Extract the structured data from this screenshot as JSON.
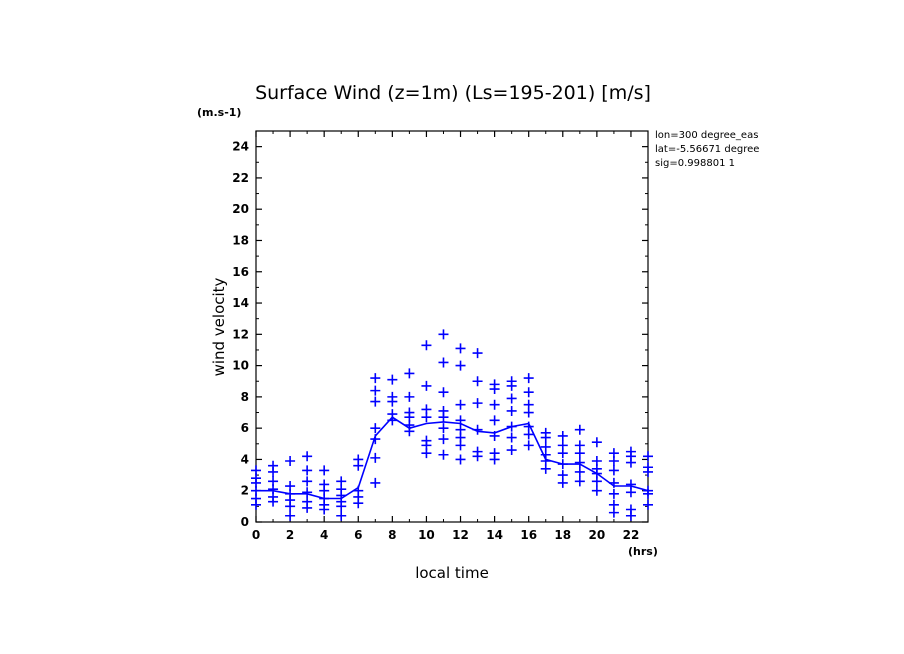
{
  "chart_data": {
    "type": "scatter",
    "title": "Surface Wind (z=1m) (Ls=195-201) [m/s]",
    "y_unit": "(m.s-1)",
    "x_unit": "(hrs)",
    "xlabel": "local time",
    "ylabel": "wind velocity",
    "xlim": [
      0,
      23
    ],
    "ylim": [
      0,
      25
    ],
    "xticks": [
      0,
      2,
      4,
      6,
      8,
      10,
      12,
      14,
      16,
      18,
      20,
      22
    ],
    "yticks": [
      0,
      2,
      4,
      6,
      8,
      10,
      12,
      14,
      16,
      18,
      20,
      22,
      24
    ],
    "info": [
      "lon=300 degree_eas",
      "lat=-5.56671 degree",
      "sig=0.998801 1"
    ],
    "color": "#0000ff",
    "mean_line": {
      "x": [
        0,
        1,
        2,
        3,
        4,
        5,
        6,
        7,
        8,
        9,
        10,
        11,
        12,
        13,
        14,
        15,
        16,
        17,
        18,
        19,
        20,
        21,
        22,
        23
      ],
      "y": [
        2.0,
        2.0,
        1.8,
        1.8,
        1.5,
        1.5,
        2.2,
        5.5,
        6.7,
        6.0,
        6.3,
        6.4,
        6.3,
        5.8,
        5.7,
        6.1,
        6.3,
        4.0,
        3.7,
        3.7,
        3.1,
        2.3,
        2.3,
        2.0
      ]
    },
    "points": [
      [
        0,
        1.1
      ],
      [
        0,
        1.5
      ],
      [
        0,
        2.0
      ],
      [
        0,
        2.5
      ],
      [
        0,
        2.8
      ],
      [
        0,
        3.3
      ],
      [
        1,
        1.3
      ],
      [
        1,
        1.6
      ],
      [
        1,
        2.1
      ],
      [
        1,
        2.6
      ],
      [
        1,
        3.2
      ],
      [
        1,
        3.6
      ],
      [
        2,
        0.4
      ],
      [
        2,
        1.0
      ],
      [
        2,
        1.4
      ],
      [
        2,
        1.8
      ],
      [
        2,
        2.3
      ],
      [
        2,
        3.9
      ],
      [
        3,
        0.9
      ],
      [
        3,
        1.3
      ],
      [
        3,
        1.9
      ],
      [
        3,
        2.6
      ],
      [
        3,
        3.3
      ],
      [
        3,
        4.2
      ],
      [
        4,
        0.8
      ],
      [
        4,
        1.1
      ],
      [
        4,
        1.5
      ],
      [
        4,
        2.0
      ],
      [
        4,
        2.4
      ],
      [
        4,
        3.3
      ],
      [
        5,
        0.4
      ],
      [
        5,
        1.0
      ],
      [
        5,
        1.3
      ],
      [
        5,
        1.7
      ],
      [
        5,
        2.1
      ],
      [
        5,
        2.6
      ],
      [
        6,
        1.2
      ],
      [
        6,
        1.6
      ],
      [
        6,
        2.0
      ],
      [
        6,
        3.6
      ],
      [
        6,
        4.0
      ],
      [
        7,
        2.5
      ],
      [
        7,
        4.1
      ],
      [
        7,
        5.3
      ],
      [
        7,
        6.0
      ],
      [
        7,
        7.7
      ],
      [
        7,
        8.4
      ],
      [
        7,
        9.2
      ],
      [
        8,
        6.5
      ],
      [
        8,
        6.9
      ],
      [
        8,
        7.7
      ],
      [
        8,
        8.0
      ],
      [
        8,
        9.1
      ],
      [
        9,
        5.8
      ],
      [
        9,
        6.2
      ],
      [
        9,
        6.7
      ],
      [
        9,
        7.0
      ],
      [
        9,
        8.0
      ],
      [
        9,
        9.5
      ],
      [
        10,
        4.4
      ],
      [
        10,
        4.9
      ],
      [
        10,
        5.2
      ],
      [
        10,
        6.7
      ],
      [
        10,
        7.2
      ],
      [
        10,
        8.7
      ],
      [
        10,
        11.3
      ],
      [
        11,
        4.3
      ],
      [
        11,
        5.3
      ],
      [
        11,
        6.0
      ],
      [
        11,
        6.7
      ],
      [
        11,
        7.1
      ],
      [
        11,
        8.3
      ],
      [
        11,
        10.2
      ],
      [
        11,
        12.0
      ],
      [
        12,
        4.0
      ],
      [
        12,
        4.9
      ],
      [
        12,
        5.4
      ],
      [
        12,
        5.9
      ],
      [
        12,
        6.5
      ],
      [
        12,
        7.5
      ],
      [
        12,
        10.0
      ],
      [
        12,
        11.1
      ],
      [
        13,
        4.2
      ],
      [
        13,
        4.5
      ],
      [
        13,
        5.9
      ],
      [
        13,
        7.6
      ],
      [
        13,
        9.0
      ],
      [
        13,
        10.8
      ],
      [
        14,
        4.0
      ],
      [
        14,
        4.4
      ],
      [
        14,
        5.5
      ],
      [
        14,
        6.5
      ],
      [
        14,
        7.5
      ],
      [
        14,
        8.5
      ],
      [
        14,
        8.8
      ],
      [
        15,
        4.6
      ],
      [
        15,
        5.4
      ],
      [
        15,
        6.1
      ],
      [
        15,
        7.1
      ],
      [
        15,
        7.9
      ],
      [
        15,
        8.7
      ],
      [
        15,
        9.0
      ],
      [
        16,
        4.9
      ],
      [
        16,
        5.6
      ],
      [
        16,
        6.1
      ],
      [
        16,
        7.0
      ],
      [
        16,
        7.5
      ],
      [
        16,
        8.3
      ],
      [
        16,
        9.2
      ],
      [
        17,
        3.4
      ],
      [
        17,
        3.9
      ],
      [
        17,
        4.3
      ],
      [
        17,
        4.8
      ],
      [
        17,
        5.4
      ],
      [
        17,
        5.7
      ],
      [
        18,
        2.5
      ],
      [
        18,
        3.0
      ],
      [
        18,
        3.7
      ],
      [
        18,
        4.4
      ],
      [
        18,
        4.9
      ],
      [
        18,
        5.5
      ],
      [
        19,
        2.6
      ],
      [
        19,
        3.2
      ],
      [
        19,
        3.8
      ],
      [
        19,
        4.4
      ],
      [
        19,
        4.9
      ],
      [
        19,
        5.9
      ],
      [
        20,
        2.0
      ],
      [
        20,
        2.6
      ],
      [
        20,
        3.1
      ],
      [
        20,
        3.4
      ],
      [
        20,
        3.9
      ],
      [
        20,
        5.1
      ],
      [
        21,
        0.6
      ],
      [
        21,
        1.1
      ],
      [
        21,
        1.8
      ],
      [
        21,
        2.5
      ],
      [
        21,
        3.3
      ],
      [
        21,
        3.9
      ],
      [
        21,
        4.4
      ],
      [
        22,
        0.4
      ],
      [
        22,
        0.8
      ],
      [
        22,
        1.9
      ],
      [
        22,
        2.4
      ],
      [
        22,
        3.8
      ],
      [
        22,
        4.2
      ],
      [
        22,
        4.5
      ],
      [
        23,
        1.1
      ],
      [
        23,
        1.8
      ],
      [
        23,
        2.0
      ],
      [
        23,
        3.2
      ],
      [
        23,
        3.5
      ],
      [
        23,
        4.2
      ]
    ]
  }
}
